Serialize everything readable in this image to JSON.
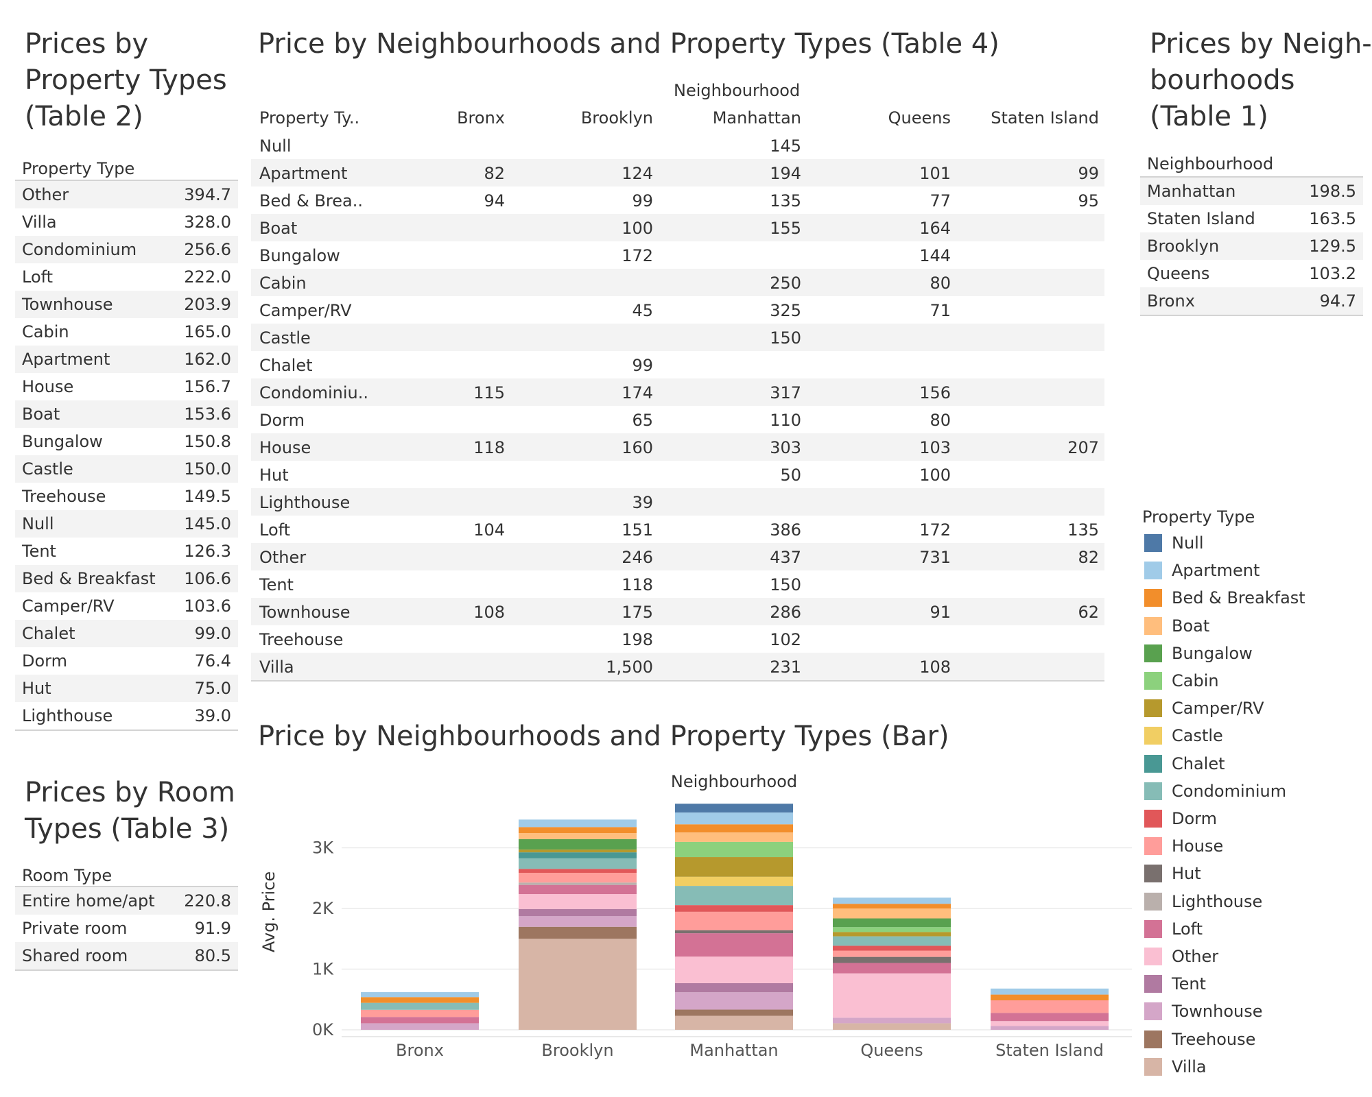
{
  "table2": {
    "title_lines": [
      "Prices by",
      "Property Types",
      "(Table 2)"
    ],
    "header": "Property Type",
    "rows": [
      {
        "label": "Other",
        "value": "394.7"
      },
      {
        "label": "Villa",
        "value": "328.0"
      },
      {
        "label": "Condominium",
        "value": "256.6"
      },
      {
        "label": "Loft",
        "value": "222.0"
      },
      {
        "label": "Townhouse",
        "value": "203.9"
      },
      {
        "label": "Cabin",
        "value": "165.0"
      },
      {
        "label": "Apartment",
        "value": "162.0"
      },
      {
        "label": "House",
        "value": "156.7"
      },
      {
        "label": "Boat",
        "value": "153.6"
      },
      {
        "label": "Bungalow",
        "value": "150.8"
      },
      {
        "label": "Castle",
        "value": "150.0"
      },
      {
        "label": "Treehouse",
        "value": "149.5"
      },
      {
        "label": "Null",
        "value": "145.0"
      },
      {
        "label": "Tent",
        "value": "126.3"
      },
      {
        "label": "Bed & Breakfast",
        "value": "106.6"
      },
      {
        "label": "Camper/RV",
        "value": "103.6"
      },
      {
        "label": "Chalet",
        "value": "99.0"
      },
      {
        "label": "Dorm",
        "value": "76.4"
      },
      {
        "label": "Hut",
        "value": "75.0"
      },
      {
        "label": "Lighthouse",
        "value": "39.0"
      }
    ]
  },
  "table3": {
    "title_lines": [
      "Prices by Room",
      "Types (Table 3)"
    ],
    "header": "Room Type",
    "rows": [
      {
        "label": "Entire home/apt",
        "value": "220.8"
      },
      {
        "label": "Private room",
        "value": "91.9"
      },
      {
        "label": "Shared room",
        "value": "80.5"
      }
    ]
  },
  "table1": {
    "title_lines": [
      "Prices by Neigh-",
      "bourhoods",
      "(Table 1)"
    ],
    "header": "Neighbourhood",
    "rows": [
      {
        "label": "Manhattan",
        "value": "198.5"
      },
      {
        "label": "Staten Island",
        "value": "163.5"
      },
      {
        "label": "Brooklyn",
        "value": "129.5"
      },
      {
        "label": "Queens",
        "value": "103.2"
      },
      {
        "label": "Bronx",
        "value": "94.7"
      }
    ]
  },
  "table4": {
    "title": "Price by Neighbourhoods and Property Types (Table 4)",
    "group_header": "Neighbourhood",
    "row_header": "Property Ty..",
    "columns": [
      "Bronx",
      "Brooklyn",
      "Manhattan",
      "Queens",
      "Staten Island"
    ],
    "rows": [
      {
        "label": "Null",
        "values": [
          "",
          "",
          "145",
          "",
          ""
        ]
      },
      {
        "label": "Apartment",
        "values": [
          "82",
          "124",
          "194",
          "101",
          "99"
        ]
      },
      {
        "label": "Bed & Brea..",
        "values": [
          "94",
          "99",
          "135",
          "77",
          "95"
        ]
      },
      {
        "label": "Boat",
        "values": [
          "",
          "100",
          "155",
          "164",
          ""
        ]
      },
      {
        "label": "Bungalow",
        "values": [
          "",
          "172",
          "",
          "144",
          ""
        ]
      },
      {
        "label": "Cabin",
        "values": [
          "",
          "",
          "250",
          "80",
          ""
        ]
      },
      {
        "label": "Camper/RV",
        "values": [
          "",
          "45",
          "325",
          "71",
          ""
        ]
      },
      {
        "label": "Castle",
        "values": [
          "",
          "",
          "150",
          "",
          ""
        ]
      },
      {
        "label": "Chalet",
        "values": [
          "",
          "99",
          "",
          "",
          ""
        ]
      },
      {
        "label": "Condominiu..",
        "values": [
          "115",
          "174",
          "317",
          "156",
          ""
        ]
      },
      {
        "label": "Dorm",
        "values": [
          "",
          "65",
          "110",
          "80",
          ""
        ]
      },
      {
        "label": "House",
        "values": [
          "118",
          "160",
          "303",
          "103",
          "207"
        ]
      },
      {
        "label": "Hut",
        "values": [
          "",
          "",
          "50",
          "100",
          ""
        ]
      },
      {
        "label": "Lighthouse",
        "values": [
          "",
          "39",
          "",
          "",
          ""
        ]
      },
      {
        "label": "Loft",
        "values": [
          "104",
          "151",
          "386",
          "172",
          "135"
        ]
      },
      {
        "label": "Other",
        "values": [
          "",
          "246",
          "437",
          "731",
          "82"
        ]
      },
      {
        "label": "Tent",
        "values": [
          "",
          "118",
          "150",
          "",
          ""
        ]
      },
      {
        "label": "Townhouse",
        "values": [
          "108",
          "175",
          "286",
          "91",
          "62"
        ]
      },
      {
        "label": "Treehouse",
        "values": [
          "",
          "198",
          "102",
          "",
          ""
        ]
      },
      {
        "label": "Villa",
        "values": [
          "",
          "1,500",
          "231",
          "108",
          ""
        ]
      }
    ]
  },
  "bar_chart_title": "Price by Neighbourhoods and Property Types (Bar)",
  "legend_title": "Property Type",
  "colors": {
    "Null": "#4e79a7",
    "Apartment": "#a0cbe8",
    "Bed & Breakfast": "#f28e2b",
    "Boat": "#ffbe7d",
    "Bungalow": "#59a14f",
    "Cabin": "#8cd17d",
    "Camper/RV": "#b6992d",
    "Castle": "#f1ce63",
    "Chalet": "#499894",
    "Condominium": "#86bcb6",
    "Dorm": "#e15759",
    "House": "#ff9d9a",
    "Hut": "#79706e",
    "Lighthouse": "#bab0ac",
    "Loft": "#d37295",
    "Other": "#fabfd2",
    "Tent": "#b07aa1",
    "Townhouse": "#d4a6c8",
    "Treehouse": "#9d7660",
    "Villa": "#d7b5a6"
  },
  "chart_data": {
    "type": "bar",
    "stacked": true,
    "xlabel": "",
    "top_label": "Neighbourhood",
    "ylabel": "Avg. Price",
    "ylim": [
      0,
      3800
    ],
    "yticks": [
      0,
      1000,
      2000,
      3000
    ],
    "ytick_labels": [
      "0K",
      "1K",
      "2K",
      "3K"
    ],
    "grid": true,
    "legend_position": "right",
    "categories": [
      "Bronx",
      "Brooklyn",
      "Manhattan",
      "Queens",
      "Staten Island"
    ],
    "series": [
      {
        "name": "Null",
        "values": [
          0,
          0,
          145,
          0,
          0
        ]
      },
      {
        "name": "Apartment",
        "values": [
          82,
          124,
          194,
          101,
          99
        ]
      },
      {
        "name": "Bed & Breakfast",
        "values": [
          94,
          99,
          135,
          77,
          95
        ]
      },
      {
        "name": "Boat",
        "values": [
          0,
          100,
          155,
          164,
          0
        ]
      },
      {
        "name": "Bungalow",
        "values": [
          0,
          172,
          0,
          144,
          0
        ]
      },
      {
        "name": "Cabin",
        "values": [
          0,
          0,
          250,
          80,
          0
        ]
      },
      {
        "name": "Camper/RV",
        "values": [
          0,
          45,
          325,
          71,
          0
        ]
      },
      {
        "name": "Castle",
        "values": [
          0,
          0,
          150,
          0,
          0
        ]
      },
      {
        "name": "Chalet",
        "values": [
          0,
          99,
          0,
          0,
          0
        ]
      },
      {
        "name": "Condominium",
        "values": [
          115,
          174,
          317,
          156,
          0
        ]
      },
      {
        "name": "Dorm",
        "values": [
          0,
          65,
          110,
          80,
          0
        ]
      },
      {
        "name": "House",
        "values": [
          118,
          160,
          303,
          103,
          207
        ]
      },
      {
        "name": "Hut",
        "values": [
          0,
          0,
          50,
          100,
          0
        ]
      },
      {
        "name": "Lighthouse",
        "values": [
          0,
          39,
          0,
          0,
          0
        ]
      },
      {
        "name": "Loft",
        "values": [
          104,
          151,
          386,
          172,
          135
        ]
      },
      {
        "name": "Other",
        "values": [
          0,
          246,
          437,
          731,
          82
        ]
      },
      {
        "name": "Tent",
        "values": [
          0,
          118,
          150,
          0,
          0
        ]
      },
      {
        "name": "Townhouse",
        "values": [
          108,
          175,
          286,
          91,
          62
        ]
      },
      {
        "name": "Treehouse",
        "values": [
          0,
          198,
          102,
          0,
          0
        ]
      },
      {
        "name": "Villa",
        "values": [
          0,
          1500,
          231,
          108,
          0
        ]
      }
    ]
  }
}
